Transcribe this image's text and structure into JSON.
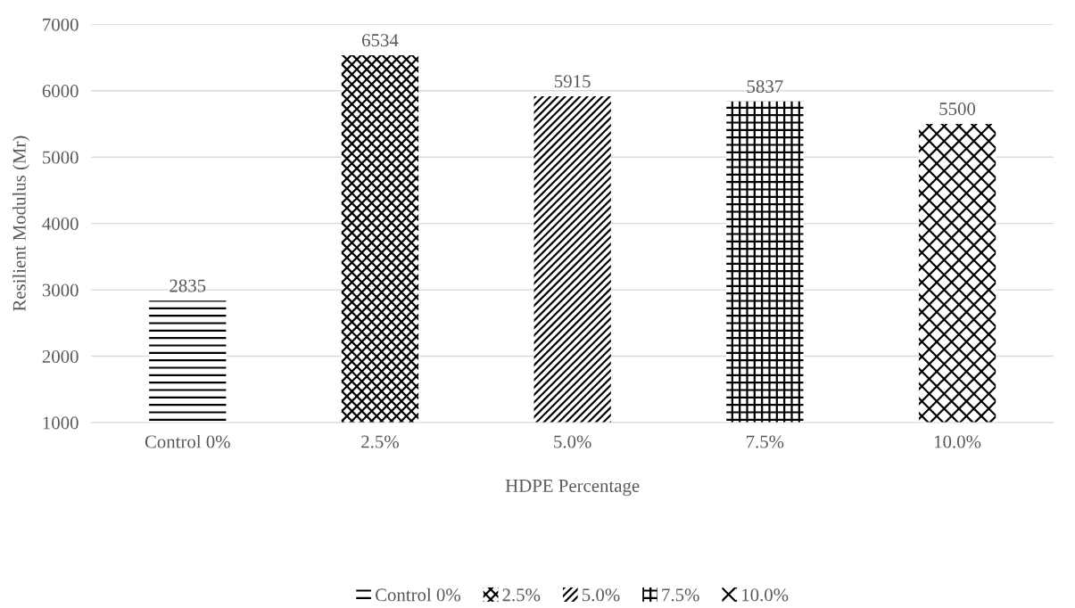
{
  "chart_data": {
    "type": "bar",
    "xlabel": "HDPE Percentage",
    "ylabel": "Resilient Modulus (Mr)",
    "categories": [
      "Control 0%",
      "2.5%",
      "5.0%",
      "7.5%",
      "10.0%"
    ],
    "series": [
      {
        "name": "Control 0%",
        "color": "#000000",
        "values": [
          2835,
          null,
          null,
          null,
          null
        ]
      },
      {
        "name": "2.5%",
        "color": "#000000",
        "values": [
          null,
          6534,
          null,
          null,
          null
        ]
      },
      {
        "name": "5.0%",
        "color": "#000000",
        "values": [
          null,
          null,
          5915,
          null,
          null
        ]
      },
      {
        "name": "7.5%",
        "color": "#000000",
        "values": [
          null,
          null,
          null,
          5837,
          null
        ]
      },
      {
        "name": "10.0%",
        "color": "#000000",
        "values": [
          null,
          null,
          null,
          null,
          5500
        ]
      }
    ],
    "ylim": [
      1000,
      7000
    ],
    "yticks": [
      1000,
      2000,
      3000,
      4000,
      5000,
      6000,
      7000
    ],
    "grid": "y",
    "legend": "bottom",
    "data_labels": true
  }
}
